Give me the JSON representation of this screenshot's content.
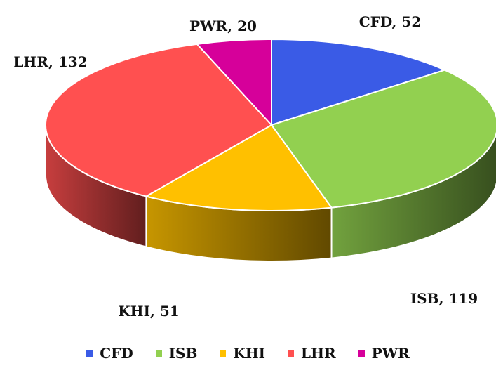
{
  "chart_data": {
    "type": "pie",
    "title": "",
    "categories": [
      "CFD",
      "ISB",
      "KHI",
      "LHR",
      "PWR"
    ],
    "values": [
      52,
      119,
      51,
      132,
      20
    ],
    "labels": [
      "CFD, 52",
      "ISB, 119",
      "KHI, 51",
      "LHR, 132",
      "PWR, 20"
    ],
    "colors": [
      "#3A5BE6",
      "#92D050",
      "#FFC000",
      "#FF5050",
      "#D6009A"
    ],
    "legend_position": "bottom",
    "style": "3d"
  }
}
